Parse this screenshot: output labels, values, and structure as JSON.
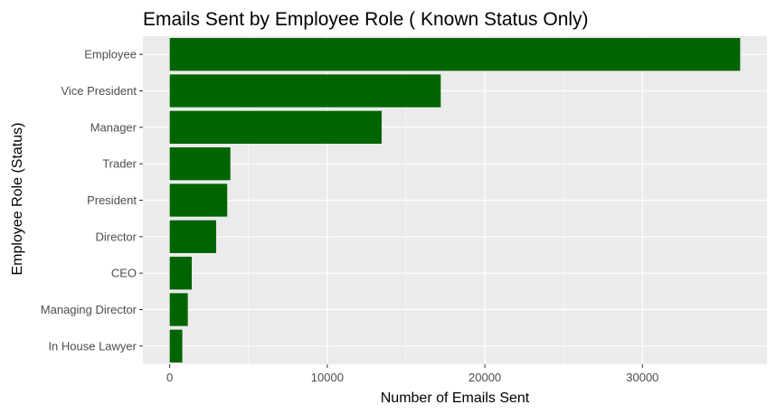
{
  "chart_data": {
    "type": "bar",
    "orientation": "horizontal",
    "title": "Emails Sent by Employee Role ( Known Status Only)",
    "xlabel": "Number of Emails Sent",
    "ylabel": "Employee Role (Status)",
    "categories": [
      "Employee",
      "Vice President",
      "Manager",
      "Trader",
      "President",
      "Director",
      "CEO",
      "Managing Director",
      "In House Lawyer"
    ],
    "values": [
      36200,
      17200,
      13450,
      3850,
      3650,
      2950,
      1400,
      1150,
      800
    ],
    "xlim": [
      -1700,
      37900
    ],
    "xticks": [
      0,
      10000,
      20000,
      30000
    ],
    "xtick_labels": [
      "0",
      "10000",
      "20000",
      "30000"
    ],
    "grid": true,
    "bar_color": "#006400",
    "panel_background": "#ebebeb",
    "grid_color": "#ffffff"
  }
}
